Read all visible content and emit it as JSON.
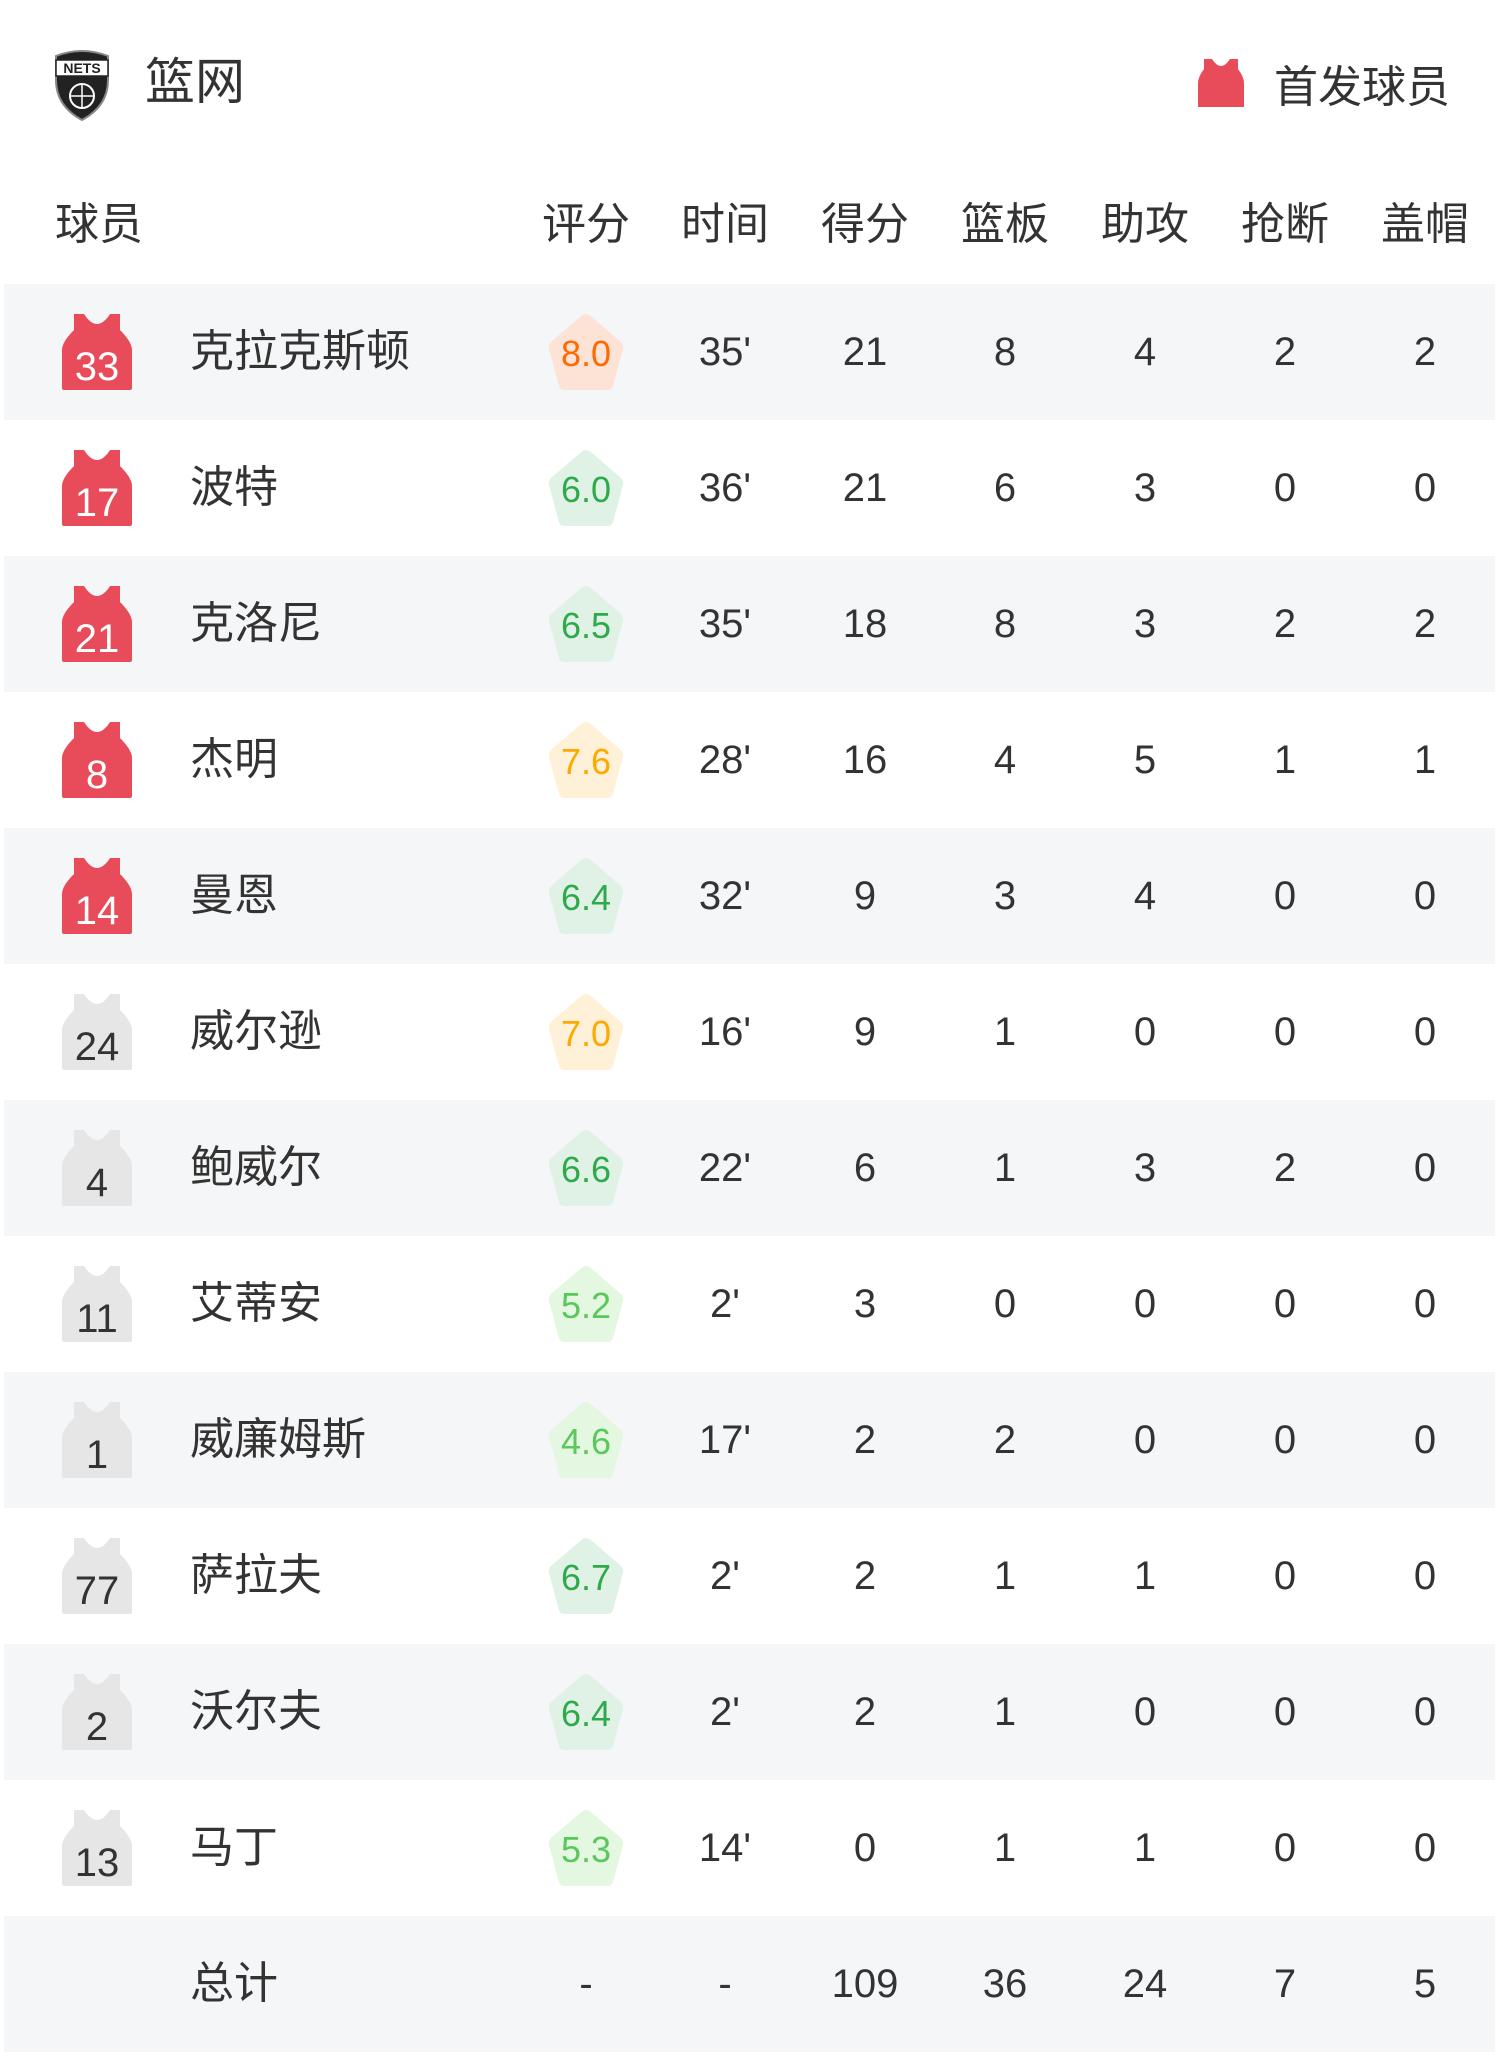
{
  "team": {
    "name": "篮网",
    "logo_text": "NETS",
    "logo_icon": "nets-logo"
  },
  "legend": {
    "label": "首发球员",
    "icon": "jersey-icon",
    "color": "#e84c5b"
  },
  "columns": [
    "球员",
    "评分",
    "时间",
    "得分",
    "篮板",
    "助攻",
    "抢断",
    "盖帽"
  ],
  "colors": {
    "starter": "#e84c5b",
    "bench": "#e6e6e6",
    "row_alt": "#f5f6f8",
    "rating_high": {
      "text": "#ff6a00",
      "bg": "#fde2d6"
    },
    "rating_good": {
      "text": "#ffa800",
      "bg": "#fff1d8"
    },
    "rating_mid": {
      "text": "#2eaa4a",
      "bg": "#e0f2e6"
    },
    "rating_low": {
      "text": "#5bc85b",
      "bg": "#e4f7e1"
    }
  },
  "players": [
    {
      "number": "33",
      "name": "克拉克斯顿",
      "starter": true,
      "rating": "8.0",
      "min": "35'",
      "pts": "21",
      "reb": "8",
      "ast": "4",
      "stl": "2",
      "blk": "2"
    },
    {
      "number": "17",
      "name": "波特",
      "starter": true,
      "rating": "6.0",
      "min": "36'",
      "pts": "21",
      "reb": "6",
      "ast": "3",
      "stl": "0",
      "blk": "0"
    },
    {
      "number": "21",
      "name": "克洛尼",
      "starter": true,
      "rating": "6.5",
      "min": "35'",
      "pts": "18",
      "reb": "8",
      "ast": "3",
      "stl": "2",
      "blk": "2"
    },
    {
      "number": "8",
      "name": "杰明",
      "starter": true,
      "rating": "7.6",
      "min": "28'",
      "pts": "16",
      "reb": "4",
      "ast": "5",
      "stl": "1",
      "blk": "1"
    },
    {
      "number": "14",
      "name": "曼恩",
      "starter": true,
      "rating": "6.4",
      "min": "32'",
      "pts": "9",
      "reb": "3",
      "ast": "4",
      "stl": "0",
      "blk": "0"
    },
    {
      "number": "24",
      "name": "威尔逊",
      "starter": false,
      "rating": "7.0",
      "min": "16'",
      "pts": "9",
      "reb": "1",
      "ast": "0",
      "stl": "0",
      "blk": "0"
    },
    {
      "number": "4",
      "name": "鲍威尔",
      "starter": false,
      "rating": "6.6",
      "min": "22'",
      "pts": "6",
      "reb": "1",
      "ast": "3",
      "stl": "2",
      "blk": "0"
    },
    {
      "number": "11",
      "name": "艾蒂安",
      "starter": false,
      "rating": "5.2",
      "min": "2'",
      "pts": "3",
      "reb": "0",
      "ast": "0",
      "stl": "0",
      "blk": "0"
    },
    {
      "number": "1",
      "name": "威廉姆斯",
      "starter": false,
      "rating": "4.6",
      "min": "17'",
      "pts": "2",
      "reb": "2",
      "ast": "0",
      "stl": "0",
      "blk": "0"
    },
    {
      "number": "77",
      "name": "萨拉夫",
      "starter": false,
      "rating": "6.7",
      "min": "2'",
      "pts": "2",
      "reb": "1",
      "ast": "1",
      "stl": "0",
      "blk": "0"
    },
    {
      "number": "2",
      "name": "沃尔夫",
      "starter": false,
      "rating": "6.4",
      "min": "2'",
      "pts": "2",
      "reb": "1",
      "ast": "0",
      "stl": "0",
      "blk": "0"
    },
    {
      "number": "13",
      "name": "马丁",
      "starter": false,
      "rating": "5.3",
      "min": "14'",
      "pts": "0",
      "reb": "1",
      "ast": "1",
      "stl": "0",
      "blk": "0"
    }
  ],
  "total": {
    "label": "总计",
    "rating": "-",
    "min": "-",
    "pts": "109",
    "reb": "36",
    "ast": "24",
    "stl": "7",
    "blk": "5"
  }
}
